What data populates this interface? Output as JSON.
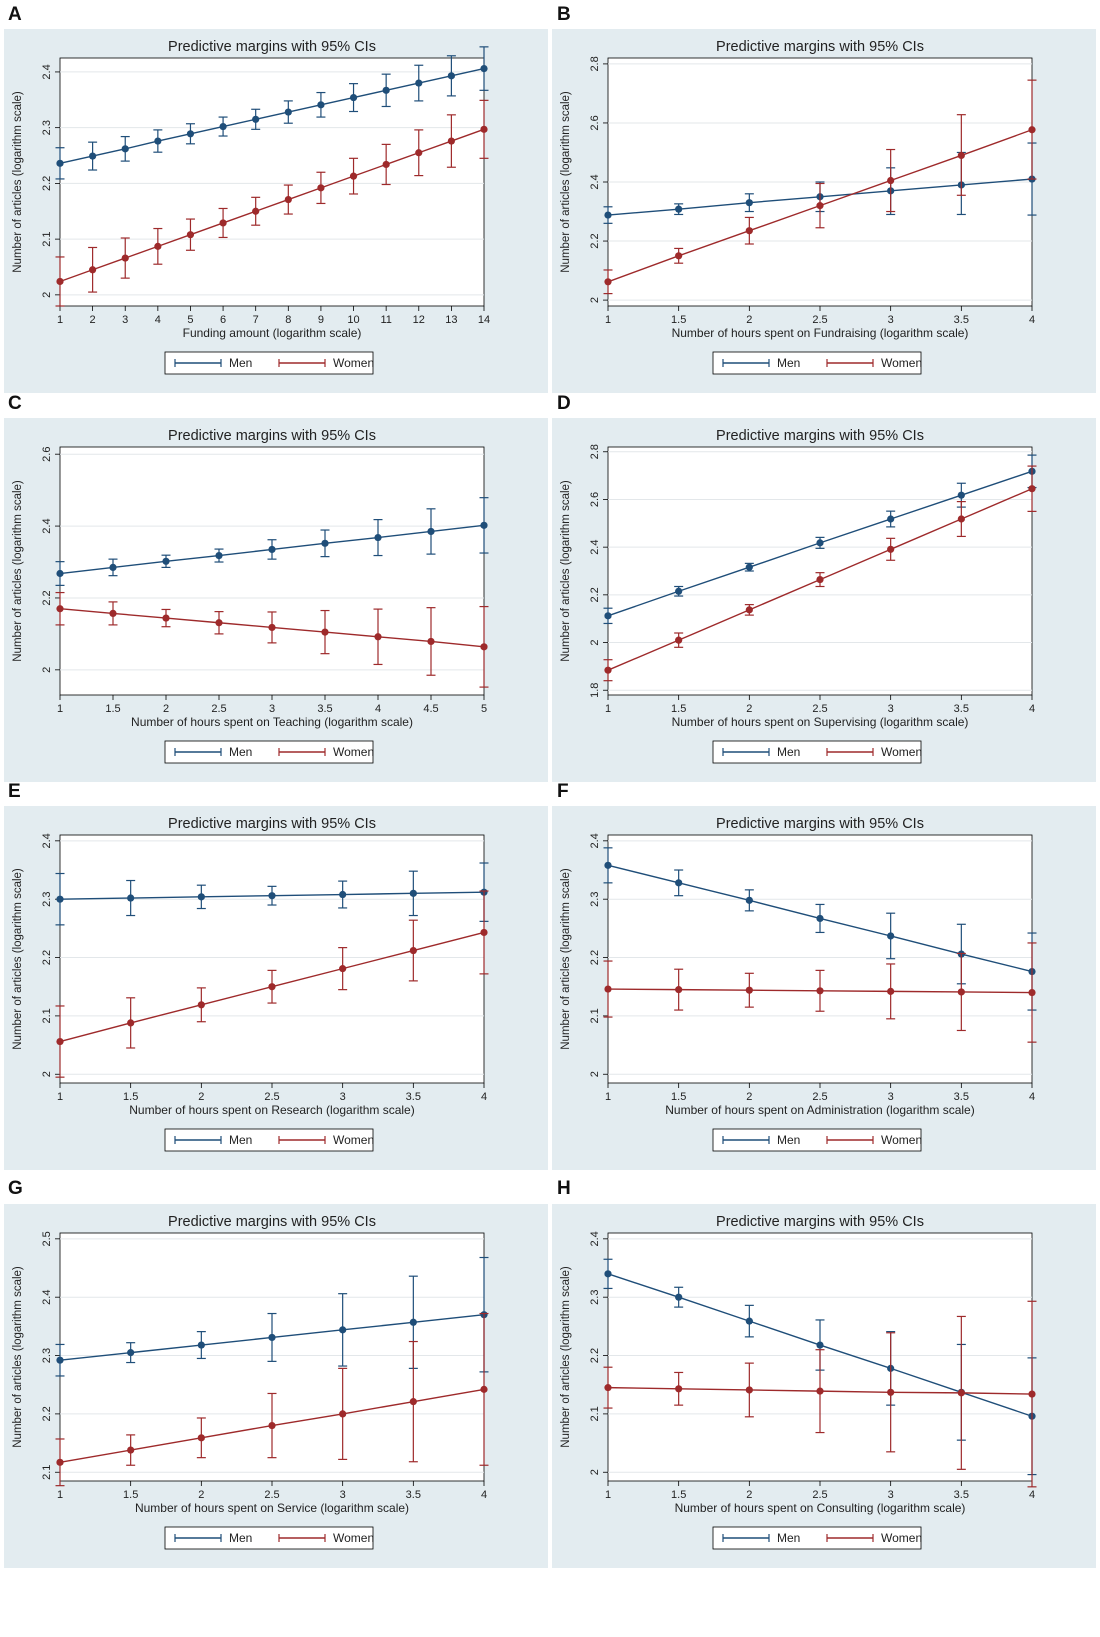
{
  "colors": {
    "men": "#1f4e79",
    "women": "#9e2a2b",
    "panel_bg": "#e3ecf0",
    "plot_bg": "#ffffff",
    "grid": "#e3e7ea"
  },
  "legend_labels": [
    "Men",
    "Women"
  ],
  "chart_data": [
    {
      "letter": "A",
      "type": "line",
      "title": "Predictive margins with 95% CIs",
      "xlabel": "Funding amount (logarithm scale)",
      "ylabel": "Number of articles (logarithm scale)",
      "x": [
        1,
        2,
        3,
        4,
        5,
        6,
        7,
        8,
        9,
        10,
        11,
        12,
        13,
        14
      ],
      "xticks": [
        "1",
        "2",
        "3",
        "4",
        "5",
        "6",
        "7",
        "8",
        "9",
        "10",
        "11",
        "12",
        "13",
        "14"
      ],
      "xlim": [
        1,
        14
      ],
      "ylim": [
        1.98,
        2.425
      ],
      "yticks": [
        2,
        2.1,
        2.2,
        2.3,
        2.4
      ],
      "ytick_labels": [
        "2",
        "2.1",
        "2.2",
        "2.3",
        "2.4"
      ],
      "series": [
        {
          "name": "Men",
          "values": [
            2.236,
            2.249,
            2.262,
            2.276,
            2.289,
            2.302,
            2.315,
            2.328,
            2.341,
            2.354,
            2.367,
            2.38,
            2.393,
            2.406
          ],
          "lower": [
            2.208,
            2.224,
            2.24,
            2.256,
            2.271,
            2.285,
            2.297,
            2.308,
            2.319,
            2.329,
            2.338,
            2.348,
            2.357,
            2.367
          ],
          "upper": [
            2.264,
            2.274,
            2.284,
            2.296,
            2.307,
            2.319,
            2.333,
            2.348,
            2.363,
            2.379,
            2.396,
            2.412,
            2.429,
            2.445
          ]
        },
        {
          "name": "Women",
          "values": [
            2.024,
            2.045,
            2.066,
            2.087,
            2.108,
            2.129,
            2.15,
            2.171,
            2.192,
            2.213,
            2.234,
            2.255,
            2.276,
            2.297
          ],
          "lower": [
            1.98,
            2.005,
            2.03,
            2.055,
            2.08,
            2.103,
            2.125,
            2.145,
            2.164,
            2.181,
            2.198,
            2.214,
            2.229,
            2.245
          ],
          "upper": [
            2.068,
            2.085,
            2.102,
            2.119,
            2.136,
            2.155,
            2.175,
            2.197,
            2.22,
            2.245,
            2.27,
            2.296,
            2.323,
            2.349
          ]
        }
      ]
    },
    {
      "letter": "B",
      "type": "line",
      "title": "Predictive margins with 95% CIs",
      "xlabel": "Number of hours spent on Fundraising (logarithm scale)",
      "ylabel": "Number of articles (logarithm scale)",
      "x": [
        1,
        1.5,
        2,
        2.5,
        3,
        3.5,
        4
      ],
      "xticks": [
        "1",
        "1.5",
        "2",
        "2.5",
        "3",
        "3.5",
        "4"
      ],
      "xlim": [
        1,
        4
      ],
      "ylim": [
        1.98,
        2.82
      ],
      "yticks": [
        2,
        2.2,
        2.4,
        2.6,
        2.8
      ],
      "ytick_labels": [
        "2",
        "2.2",
        "2.4",
        "2.6",
        "2.8"
      ],
      "series": [
        {
          "name": "Men",
          "values": [
            2.288,
            2.308,
            2.33,
            2.35,
            2.37,
            2.39,
            2.41
          ],
          "lower": [
            2.26,
            2.29,
            2.3,
            2.3,
            2.29,
            2.29,
            2.288
          ],
          "upper": [
            2.316,
            2.326,
            2.36,
            2.4,
            2.448,
            2.5,
            2.532
          ]
        },
        {
          "name": "Women",
          "values": [
            2.062,
            2.15,
            2.235,
            2.32,
            2.405,
            2.49,
            2.577
          ],
          "lower": [
            2.022,
            2.125,
            2.19,
            2.245,
            2.3,
            2.355,
            2.41
          ],
          "upper": [
            2.102,
            2.175,
            2.28,
            2.395,
            2.51,
            2.628,
            2.745
          ]
        }
      ]
    },
    {
      "letter": "C",
      "type": "line",
      "title": "Predictive margins with 95% CIs",
      "xlabel": "Number of hours spent on Teaching (logarithm scale)",
      "ylabel": "Number of articles (logarithm scale)",
      "x": [
        1,
        1.5,
        2,
        2.5,
        3,
        3.5,
        4,
        4.5,
        5
      ],
      "xticks": [
        "1",
        "1.5",
        "2",
        "2.5",
        "3",
        "3.5",
        "4",
        "4.5",
        "5"
      ],
      "xlim": [
        1,
        5
      ],
      "ylim": [
        1.93,
        2.62
      ],
      "yticks": [
        2,
        2.2,
        2.4,
        2.6
      ],
      "ytick_labels": [
        "2",
        "2.2",
        "2.4",
        "2.6"
      ],
      "series": [
        {
          "name": "Men",
          "values": [
            2.268,
            2.285,
            2.302,
            2.318,
            2.335,
            2.352,
            2.368,
            2.385,
            2.402
          ],
          "lower": [
            2.235,
            2.262,
            2.285,
            2.3,
            2.308,
            2.315,
            2.318,
            2.322,
            2.325
          ],
          "upper": [
            2.301,
            2.308,
            2.319,
            2.336,
            2.362,
            2.389,
            2.418,
            2.448,
            2.479
          ]
        },
        {
          "name": "Women",
          "values": [
            2.17,
            2.157,
            2.144,
            2.131,
            2.118,
            2.105,
            2.092,
            2.079,
            2.064
          ],
          "lower": [
            2.125,
            2.125,
            2.12,
            2.1,
            2.075,
            2.045,
            2.015,
            1.985,
            1.952
          ],
          "upper": [
            2.215,
            2.189,
            2.168,
            2.162,
            2.161,
            2.165,
            2.169,
            2.173,
            2.176
          ]
        }
      ]
    },
    {
      "letter": "D",
      "type": "line",
      "title": "Predictive margins with 95% CIs",
      "xlabel": "Number of hours spent on Supervising (logarithm scale)",
      "ylabel": "Number of articles (logarithm scale)",
      "x": [
        1,
        1.5,
        2,
        2.5,
        3,
        3.5,
        4
      ],
      "xticks": [
        "1",
        "1.5",
        "2",
        "2.5",
        "3",
        "3.5",
        "4"
      ],
      "xlim": [
        1,
        4
      ],
      "ylim": [
        1.78,
        2.82
      ],
      "yticks": [
        1.8,
        2,
        2.2,
        2.4,
        2.6,
        2.8
      ],
      "ytick_labels": [
        "1.8",
        "2",
        "2.2",
        "2.4",
        "2.6",
        "2.8"
      ],
      "series": [
        {
          "name": "Men",
          "values": [
            2.112,
            2.215,
            2.316,
            2.418,
            2.518,
            2.618,
            2.718
          ],
          "lower": [
            2.08,
            2.195,
            2.3,
            2.395,
            2.485,
            2.568,
            2.65
          ],
          "upper": [
            2.144,
            2.235,
            2.332,
            2.441,
            2.551,
            2.668,
            2.786
          ]
        },
        {
          "name": "Women",
          "values": [
            1.884,
            2.01,
            2.137,
            2.264,
            2.391,
            2.518,
            2.645
          ],
          "lower": [
            1.84,
            1.98,
            2.115,
            2.235,
            2.345,
            2.445,
            2.55
          ],
          "upper": [
            1.928,
            2.04,
            2.159,
            2.293,
            2.437,
            2.591,
            2.74
          ]
        }
      ]
    },
    {
      "letter": "E",
      "type": "line",
      "title": "Predictive margins with 95% CIs",
      "xlabel": "Number of hours spent on Research (logarithm scale)",
      "ylabel": "Number of articles (logarithm scale)",
      "x": [
        1,
        1.5,
        2,
        2.5,
        3,
        3.5,
        4
      ],
      "xticks": [
        "1",
        "1.5",
        "2",
        "2.5",
        "3",
        "3.5",
        "4"
      ],
      "xlim": [
        1,
        4
      ],
      "ylim": [
        1.985,
        2.41
      ],
      "yticks": [
        2,
        2.1,
        2.2,
        2.3,
        2.4
      ],
      "ytick_labels": [
        "2",
        "2.1",
        "2.2",
        "2.3",
        "2.4"
      ],
      "series": [
        {
          "name": "Men",
          "values": [
            2.3,
            2.302,
            2.304,
            2.306,
            2.308,
            2.31,
            2.312
          ],
          "lower": [
            2.256,
            2.272,
            2.284,
            2.29,
            2.285,
            2.272,
            2.262
          ],
          "upper": [
            2.344,
            2.332,
            2.324,
            2.322,
            2.331,
            2.348,
            2.362
          ]
        },
        {
          "name": "Women",
          "values": [
            2.056,
            2.088,
            2.119,
            2.15,
            2.181,
            2.212,
            2.243
          ],
          "lower": [
            1.995,
            2.045,
            2.09,
            2.122,
            2.145,
            2.16,
            2.172
          ],
          "upper": [
            2.117,
            2.131,
            2.148,
            2.178,
            2.217,
            2.264,
            2.314
          ]
        }
      ]
    },
    {
      "letter": "F",
      "type": "line",
      "title": "Predictive margins with 95% CIs",
      "xlabel": "Number of hours spent on Administration (logarithm scale)",
      "ylabel": "Number of articles (logarithm scale)",
      "x": [
        1,
        1.5,
        2,
        2.5,
        3,
        3.5,
        4
      ],
      "xticks": [
        "1",
        "1.5",
        "2",
        "2.5",
        "3",
        "3.5",
        "4"
      ],
      "xlim": [
        1,
        4
      ],
      "ylim": [
        1.985,
        2.41
      ],
      "yticks": [
        2,
        2.1,
        2.2,
        2.3,
        2.4
      ],
      "ytick_labels": [
        "2",
        "2.1",
        "2.2",
        "2.3",
        "2.4"
      ],
      "series": [
        {
          "name": "Men",
          "values": [
            2.358,
            2.328,
            2.298,
            2.267,
            2.237,
            2.206,
            2.176
          ],
          "lower": [
            2.328,
            2.306,
            2.28,
            2.243,
            2.198,
            2.155,
            2.11
          ],
          "upper": [
            2.388,
            2.35,
            2.316,
            2.291,
            2.276,
            2.257,
            2.242
          ]
        },
        {
          "name": "Women",
          "values": [
            2.146,
            2.145,
            2.144,
            2.143,
            2.142,
            2.141,
            2.14
          ],
          "lower": [
            2.098,
            2.11,
            2.115,
            2.108,
            2.095,
            2.075,
            2.055
          ],
          "upper": [
            2.194,
            2.18,
            2.173,
            2.178,
            2.189,
            2.207,
            2.225
          ]
        }
      ]
    },
    {
      "letter": "G",
      "type": "line",
      "title": "Predictive margins with 95% CIs",
      "xlabel": "Number of hours spent on Service (logarithm scale)",
      "ylabel": "Number of articles (logarithm scale)",
      "x": [
        1,
        1.5,
        2,
        2.5,
        3,
        3.5,
        4
      ],
      "xticks": [
        "1",
        "1.5",
        "2",
        "2.5",
        "3",
        "3.5",
        "4"
      ],
      "xlim": [
        1,
        4
      ],
      "ylim": [
        2.085,
        2.51
      ],
      "yticks": [
        2.1,
        2.2,
        2.3,
        2.4,
        2.5
      ],
      "ytick_labels": [
        "2.1",
        "2.2",
        "2.3",
        "2.4",
        "2.5"
      ],
      "series": [
        {
          "name": "Men",
          "values": [
            2.292,
            2.305,
            2.318,
            2.331,
            2.344,
            2.357,
            2.37
          ],
          "lower": [
            2.265,
            2.288,
            2.295,
            2.29,
            2.282,
            2.278,
            2.272
          ],
          "upper": [
            2.319,
            2.322,
            2.341,
            2.372,
            2.406,
            2.436,
            2.468
          ]
        },
        {
          "name": "Women",
          "values": [
            2.117,
            2.138,
            2.159,
            2.18,
            2.2,
            2.221,
            2.242
          ],
          "lower": [
            2.077,
            2.112,
            2.125,
            2.125,
            2.122,
            2.118,
            2.112
          ],
          "upper": [
            2.157,
            2.164,
            2.193,
            2.235,
            2.278,
            2.324,
            2.372
          ]
        }
      ]
    },
    {
      "letter": "H",
      "type": "line",
      "title": "Predictive margins with 95% CIs",
      "xlabel": "Number of hours spent on Consulting (logarithm scale)",
      "ylabel": "Number of articles (logarithm scale)",
      "x": [
        1,
        1.5,
        2,
        2.5,
        3,
        3.5,
        4
      ],
      "xticks": [
        "1",
        "1.5",
        "2",
        "2.5",
        "3",
        "3.5",
        "4"
      ],
      "xlim": [
        1,
        4
      ],
      "ylim": [
        1.985,
        2.41
      ],
      "yticks": [
        2,
        2.1,
        2.2,
        2.3,
        2.4
      ],
      "ytick_labels": [
        "2",
        "2.1",
        "2.2",
        "2.3",
        "2.4"
      ],
      "series": [
        {
          "name": "Men",
          "values": [
            2.34,
            2.3,
            2.259,
            2.218,
            2.178,
            2.137,
            2.096
          ],
          "lower": [
            2.315,
            2.283,
            2.232,
            2.175,
            2.115,
            2.055,
            1.996
          ],
          "upper": [
            2.365,
            2.317,
            2.286,
            2.261,
            2.241,
            2.219,
            2.196
          ]
        },
        {
          "name": "Women",
          "values": [
            2.145,
            2.143,
            2.141,
            2.139,
            2.137,
            2.136,
            2.134
          ],
          "lower": [
            2.11,
            2.115,
            2.095,
            2.068,
            2.035,
            2.005,
            1.975
          ],
          "upper": [
            2.18,
            2.171,
            2.187,
            2.21,
            2.239,
            2.267,
            2.293
          ]
        }
      ]
    }
  ]
}
